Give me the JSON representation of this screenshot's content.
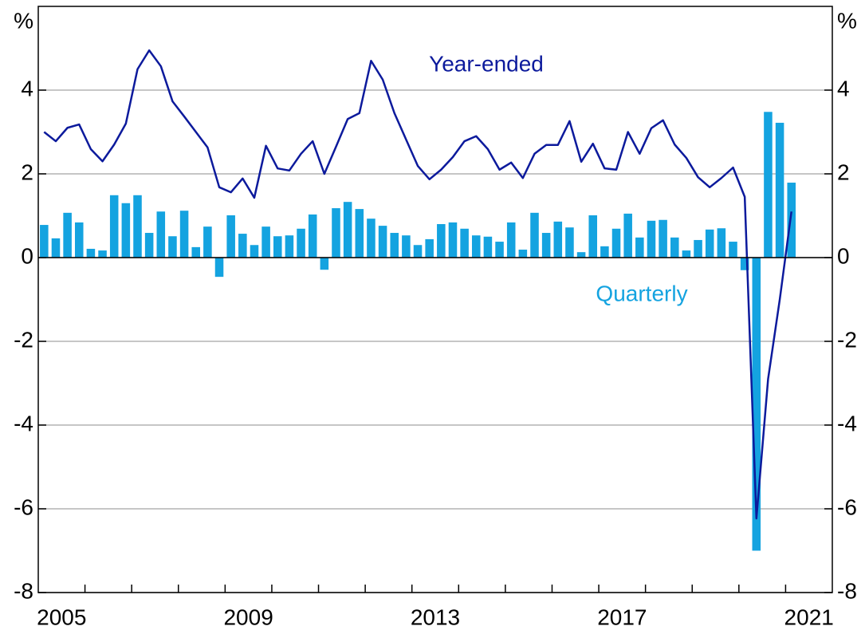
{
  "chart_data": {
    "type": "combo",
    "y_unit": "%",
    "categories": [
      "2005",
      null,
      null,
      null,
      null,
      null,
      null,
      null,
      null,
      null,
      null,
      null,
      null,
      null,
      null,
      null,
      "2009",
      null,
      null,
      null,
      null,
      null,
      null,
      null,
      null,
      null,
      null,
      null,
      null,
      null,
      null,
      null,
      "2013",
      null,
      null,
      null,
      null,
      null,
      null,
      null,
      null,
      null,
      null,
      null,
      null,
      null,
      null,
      null,
      "2017",
      null,
      null,
      null,
      null,
      null,
      null,
      null,
      null,
      null,
      null,
      null,
      null,
      null,
      null,
      null,
      "2021"
    ],
    "series": [
      {
        "name": "Quarterly",
        "type": "bar",
        "color": "#14a3e0",
        "values": [
          0.78,
          0.46,
          1.07,
          0.84,
          0.21,
          0.17,
          1.49,
          1.3,
          1.49,
          0.59,
          1.1,
          0.51,
          1.12,
          0.25,
          0.74,
          -0.46,
          1.01,
          0.57,
          0.3,
          0.74,
          0.51,
          0.53,
          0.69,
          1.03,
          -0.29,
          1.18,
          1.33,
          1.16,
          0.93,
          0.76,
          0.59,
          0.53,
          0.3,
          0.44,
          0.8,
          0.84,
          0.69,
          0.53,
          0.5,
          0.38,
          0.84,
          0.19,
          1.07,
          0.59,
          0.86,
          0.72,
          0.13,
          1.01,
          0.27,
          0.69,
          1.05,
          0.48,
          0.88,
          0.9,
          0.48,
          0.17,
          0.42,
          0.67,
          0.7,
          0.38,
          -0.3,
          -7.0,
          3.48,
          3.22,
          1.79
        ]
      },
      {
        "name": "Year-ended",
        "type": "line",
        "color": "#0c1a9c",
        "values": [
          3.0,
          2.78,
          3.1,
          3.18,
          2.59,
          2.3,
          2.7,
          3.2,
          4.5,
          4.95,
          4.57,
          3.73,
          3.37,
          3.0,
          2.63,
          1.68,
          1.56,
          1.89,
          1.43,
          2.67,
          2.13,
          2.08,
          2.48,
          2.78,
          2.0,
          2.65,
          3.31,
          3.45,
          4.7,
          4.25,
          3.45,
          2.82,
          2.19,
          1.87,
          2.1,
          2.4,
          2.78,
          2.9,
          2.59,
          2.1,
          2.27,
          1.9,
          2.48,
          2.69,
          2.69,
          3.26,
          2.29,
          2.72,
          2.13,
          2.1,
          3.0,
          2.48,
          3.09,
          3.28,
          2.7,
          2.38,
          1.92,
          1.68,
          1.9,
          2.15,
          1.45,
          -6.23,
          -2.9,
          -1.0,
          1.1
        ]
      }
    ],
    "ylim": [
      -8,
      6
    ],
    "yticks": [
      -8,
      -6,
      -4,
      -2,
      0,
      2,
      4
    ],
    "y2lim": [
      -8,
      6
    ],
    "y2ticks": [
      -8,
      -6,
      -4,
      -2,
      0,
      2,
      4
    ],
    "grid": true
  }
}
